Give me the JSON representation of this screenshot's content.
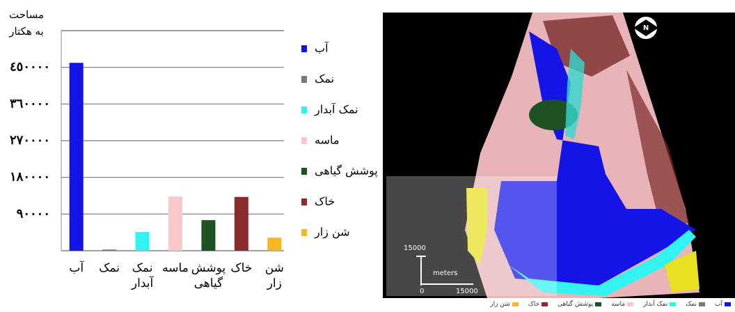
{
  "chart_data": {
    "type": "bar",
    "y_label": [
      "مساحت",
      "به هکتار"
    ],
    "categories": [
      "آب",
      "نمک",
      "نمک آبدار",
      "ماسه",
      "پوشش گیاهی",
      "خاک",
      "شن زار"
    ],
    "values": [
      461000,
      3000,
      46000,
      133000,
      75000,
      132000,
      32000
    ],
    "colors": [
      "#1414e6",
      "#7a7a7a",
      "#33f2f2",
      "#f8c9c9",
      "#1f5222",
      "#8c2b2b",
      "#f5b820"
    ],
    "ylim": [
      0,
      540000
    ],
    "yticks": [
      {
        "value": 90000,
        "label": "٩٠٠٠٠"
      },
      {
        "value": 180000,
        "label": "١٨٠٠٠٠"
      },
      {
        "value": 270000,
        "label": "٢٧٠٠٠٠"
      },
      {
        "value": 360000,
        "label": "٣٦٠٠٠٠"
      },
      {
        "value": 450000,
        "label": "٤٥٠٠٠٠"
      }
    ],
    "grid": true
  },
  "map": {
    "north": "N",
    "scale_top": "15000",
    "scale_unit": "meters",
    "scale_start": "0",
    "scale_end": "15000"
  }
}
